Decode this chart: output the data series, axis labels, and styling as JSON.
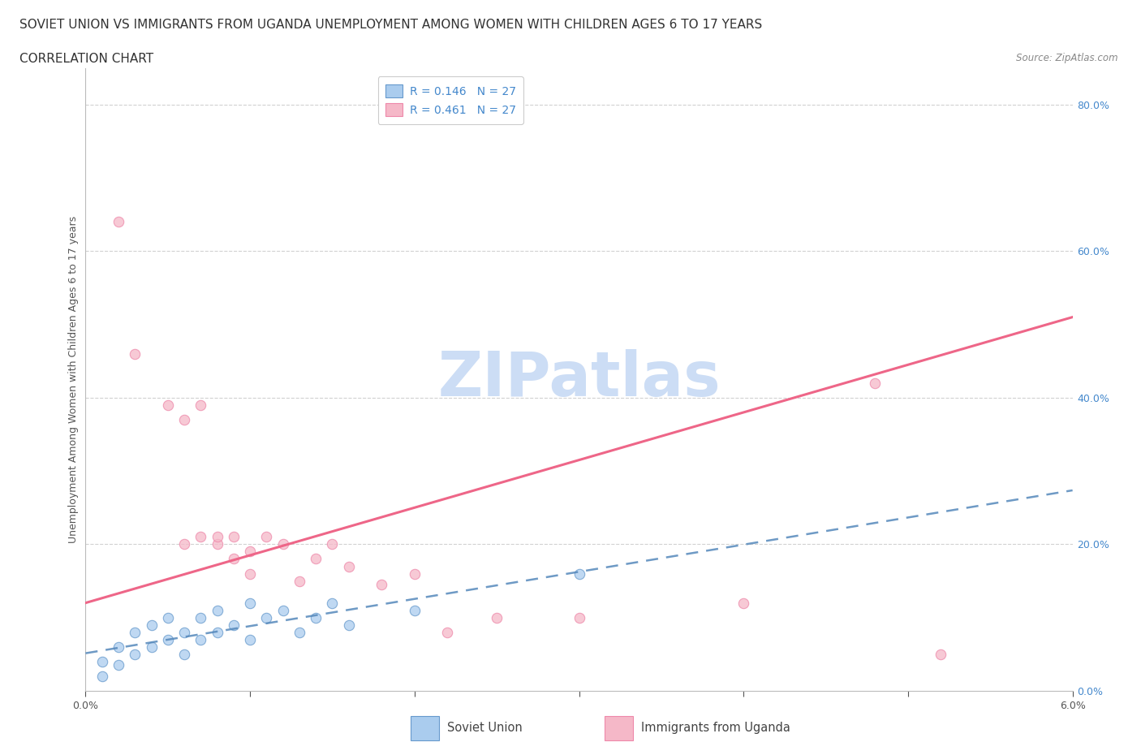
{
  "title_line1": "SOVIET UNION VS IMMIGRANTS FROM UGANDA UNEMPLOYMENT AMONG WOMEN WITH CHILDREN AGES 6 TO 17 YEARS",
  "title_line2": "CORRELATION CHART",
  "source_text": "Source: ZipAtlas.com",
  "ylabel": "Unemployment Among Women with Children Ages 6 to 17 years",
  "watermark": "ZIPatlas",
  "soviet_x": [
    0.001,
    0.001,
    0.002,
    0.002,
    0.003,
    0.003,
    0.004,
    0.004,
    0.005,
    0.005,
    0.006,
    0.006,
    0.007,
    0.007,
    0.008,
    0.008,
    0.009,
    0.01,
    0.01,
    0.011,
    0.012,
    0.013,
    0.014,
    0.015,
    0.016,
    0.02,
    0.03
  ],
  "soviet_y": [
    0.02,
    0.04,
    0.035,
    0.06,
    0.05,
    0.08,
    0.06,
    0.09,
    0.07,
    0.1,
    0.05,
    0.08,
    0.07,
    0.1,
    0.08,
    0.11,
    0.09,
    0.07,
    0.12,
    0.1,
    0.11,
    0.08,
    0.1,
    0.12,
    0.09,
    0.11,
    0.16
  ],
  "uganda_x": [
    0.002,
    0.003,
    0.005,
    0.006,
    0.006,
    0.007,
    0.007,
    0.008,
    0.008,
    0.009,
    0.009,
    0.01,
    0.01,
    0.011,
    0.012,
    0.013,
    0.014,
    0.015,
    0.016,
    0.018,
    0.02,
    0.022,
    0.025,
    0.03,
    0.04,
    0.048,
    0.052
  ],
  "uganda_y": [
    0.64,
    0.46,
    0.39,
    0.37,
    0.2,
    0.39,
    0.21,
    0.2,
    0.21,
    0.18,
    0.21,
    0.16,
    0.19,
    0.21,
    0.2,
    0.15,
    0.18,
    0.2,
    0.17,
    0.145,
    0.16,
    0.08,
    0.1,
    0.1,
    0.12,
    0.42,
    0.05
  ],
  "soviet_R": 0.146,
  "soviet_N": 27,
  "uganda_R": 0.461,
  "uganda_N": 27,
  "soviet_color": "#aaccee",
  "soviet_edge_color": "#6699cc",
  "soviet_line_color": "#5588bb",
  "uganda_color": "#f5b8c8",
  "uganda_edge_color": "#ee88aa",
  "uganda_line_color": "#ee6688",
  "xlim": [
    0.0,
    0.06
  ],
  "ylim": [
    0.0,
    0.85
  ],
  "right_yticks": [
    0.0,
    0.2,
    0.4,
    0.6,
    0.8
  ],
  "right_yticklabels": [
    "0.0%",
    "20.0%",
    "40.0%",
    "60.0%",
    "80.0%"
  ],
  "grid_color": "#cccccc",
  "background_color": "#ffffff",
  "title_fontsize": 11,
  "subtitle_fontsize": 11,
  "axis_label_fontsize": 9,
  "tick_fontsize": 9,
  "legend_fontsize": 10,
  "watermark_color": "#ccddf5",
  "watermark_fontsize": 55
}
